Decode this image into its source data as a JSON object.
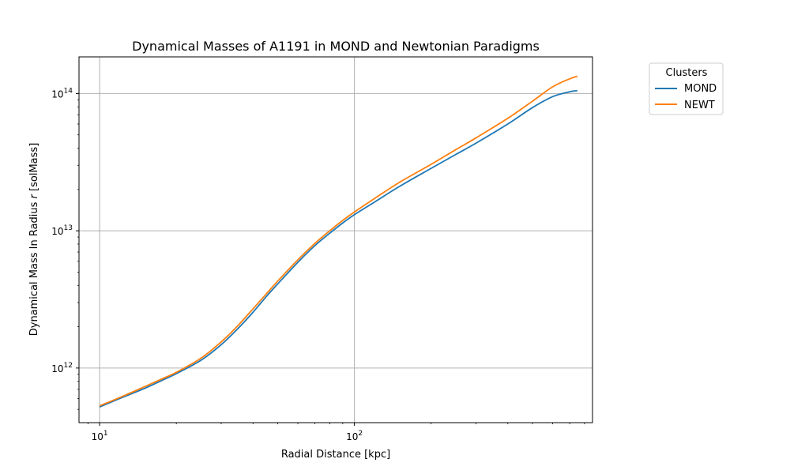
{
  "chart_data": {
    "type": "line",
    "title": "Dynamical Masses of A1191 in MOND and Newtonian Paradigms",
    "xlabel": "Radial Distance [kpc]",
    "ylabel_parts": [
      "Dynamical Mass In Radius ",
      "r",
      " [solMass]"
    ],
    "x_scale": "log",
    "y_scale": "log",
    "xlim": [
      8.3,
      860
    ],
    "ylim": [
      400000000000.0,
      185000000000000.0
    ],
    "grid": true,
    "x_major_ticks": [
      {
        "value": 10,
        "base": "10",
        "exp": "1"
      },
      {
        "value": 100,
        "base": "10",
        "exp": "2"
      }
    ],
    "y_major_ticks": [
      {
        "value": 1000000000000.0,
        "base": "10",
        "exp": "12"
      },
      {
        "value": 10000000000000.0,
        "base": "10",
        "exp": "13"
      },
      {
        "value": 100000000000000.0,
        "base": "10",
        "exp": "14"
      }
    ],
    "legend": {
      "title": "Clusters",
      "placement": "outside-right-top"
    },
    "series": [
      {
        "name": "MOND",
        "color": "#1f77b4",
        "x": [
          10,
          12,
          15,
          18,
          20,
          25,
          30,
          35,
          40,
          45,
          50,
          60,
          70,
          80,
          90,
          100,
          120,
          150,
          200,
          250,
          300,
          400,
          500,
          600,
          700,
          750
        ],
        "y": [
          520000000000.0,
          600000000000.0,
          710000000000.0,
          830000000000.0,
          910000000000.0,
          1140000000000.0,
          1480000000000.0,
          1950000000000.0,
          2550000000000.0,
          3300000000000.0,
          4100000000000.0,
          5900000000000.0,
          7800000000000.0,
          9600000000000.0,
          11400000000000.0,
          13100000000000.0,
          16200000000000.0,
          21000000000000.0,
          28500000000000.0,
          36000000000000.0,
          43500000000000.0,
          60000000000000.0,
          79000000000000.0,
          95000000000000.0,
          103000000000000.0,
          105000000000000.0
        ]
      },
      {
        "name": "NEWT",
        "color": "#ff7f0e",
        "x": [
          10,
          12,
          15,
          18,
          20,
          25,
          30,
          35,
          40,
          45,
          50,
          60,
          70,
          80,
          90,
          100,
          120,
          150,
          200,
          250,
          300,
          400,
          500,
          600,
          700,
          750
        ],
        "y": [
          530000000000.0,
          610000000000.0,
          730000000000.0,
          850000000000.0,
          930000000000.0,
          1180000000000.0,
          1550000000000.0,
          2050000000000.0,
          2700000000000.0,
          3450000000000.0,
          4300000000000.0,
          6150000000000.0,
          8100000000000.0,
          10000000000000.0,
          11900000000000.0,
          13700000000000.0,
          17200000000000.0,
          22500000000000.0,
          30500000000000.0,
          39000000000000.0,
          47500000000000.0,
          66000000000000.0,
          88000000000000.0,
          112000000000000.0,
          128000000000000.0,
          134000000000000.0
        ]
      }
    ]
  }
}
